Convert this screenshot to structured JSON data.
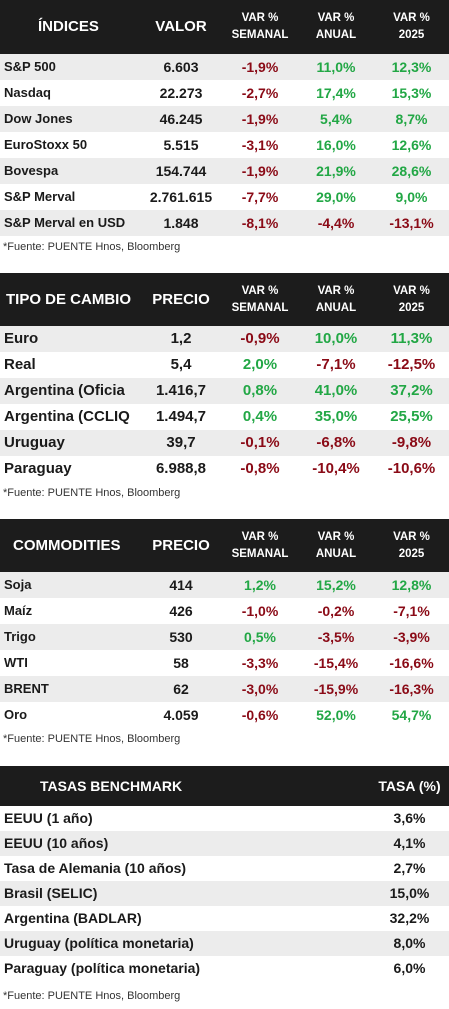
{
  "indices": {
    "headers": {
      "name": "ÍNDICES",
      "value": "VALOR",
      "week": [
        "VAR %",
        "SEMANAL"
      ],
      "year": [
        "VAR %",
        "ANUAL"
      ],
      "ytd": [
        "VAR %",
        "2025"
      ]
    },
    "rows": [
      {
        "name": "S&P 500",
        "value": "6.603",
        "week": "-1,9%",
        "year": "11,0%",
        "ytd": "12,3%"
      },
      {
        "name": "Nasdaq",
        "value": "22.273",
        "week": "-2,7%",
        "year": "17,4%",
        "ytd": "15,3%"
      },
      {
        "name": "Dow Jones",
        "value": "46.245",
        "week": "-1,9%",
        "year": "5,4%",
        "ytd": "8,7%"
      },
      {
        "name": "EuroStoxx 50",
        "value": "5.515",
        "week": "-3,1%",
        "year": "16,0%",
        "ytd": "12,6%"
      },
      {
        "name": "Bovespa",
        "value": "154.744",
        "week": "-1,9%",
        "year": "21,9%",
        "ytd": "28,6%"
      },
      {
        "name": "S&P Merval",
        "value": "2.761.615",
        "week": "-7,7%",
        "year": "29,0%",
        "ytd": "9,0%"
      },
      {
        "name": "S&P Merval en USD",
        "value": "1.848",
        "week": "-8,1%",
        "year": "-4,4%",
        "ytd": "-13,1%"
      }
    ],
    "source": "*Fuente: PUENTE Hnos, Bloomberg"
  },
  "fx": {
    "headers": {
      "name": "TIPO DE CAMBIO",
      "value": "PRECIO",
      "week": [
        "VAR %",
        "SEMANAL"
      ],
      "year": [
        "VAR %",
        "ANUAL"
      ],
      "ytd": [
        "VAR %",
        "2025"
      ]
    },
    "rows": [
      {
        "name": "Euro",
        "value": "1,2",
        "week": "-0,9%",
        "year": "10,0%",
        "ytd": "11,3%"
      },
      {
        "name": "Real",
        "value": "5,4",
        "week": "2,0%",
        "year": "-7,1%",
        "ytd": "-12,5%"
      },
      {
        "name": "Argentina (Oficia",
        "value": "1.416,7",
        "week": "0,8%",
        "year": "41,0%",
        "ytd": "37,2%"
      },
      {
        "name": "Argentina (CCLIQ",
        "value": "1.494,7",
        "week": "0,4%",
        "year": "35,0%",
        "ytd": "25,5%"
      },
      {
        "name": "Uruguay",
        "value": "39,7",
        "week": "-0,1%",
        "year": "-6,8%",
        "ytd": "-9,8%"
      },
      {
        "name": "Paraguay",
        "value": "6.988,8",
        "week": "-0,8%",
        "year": "-10,4%",
        "ytd": "-10,6%"
      }
    ],
    "source": "*Fuente: PUENTE Hnos, Bloomberg"
  },
  "commodities": {
    "headers": {
      "name": "COMMODITIES",
      "value": "PRECIO",
      "week": [
        "VAR %",
        "SEMANAL"
      ],
      "year": [
        "VAR %",
        "ANUAL"
      ],
      "ytd": [
        "VAR %",
        "2025"
      ]
    },
    "rows": [
      {
        "name": "Soja",
        "value": "414",
        "week": "1,2%",
        "year": "15,2%",
        "ytd": "12,8%"
      },
      {
        "name": "Maíz",
        "value": "426",
        "week": "-1,0%",
        "year": "-0,2%",
        "ytd": "-7,1%"
      },
      {
        "name": "Trigo",
        "value": "530",
        "week": "0,5%",
        "year": "-3,5%",
        "ytd": "-3,9%"
      },
      {
        "name": "WTI",
        "value": "58",
        "week": "-3,3%",
        "year": "-15,4%",
        "ytd": "-16,6%"
      },
      {
        "name": "BRENT",
        "value": "62",
        "week": "-3,0%",
        "year": "-15,9%",
        "ytd": "-16,3%"
      },
      {
        "name": "Oro",
        "value": "4.059",
        "week": "-0,6%",
        "year": "52,0%",
        "ytd": "54,7%"
      }
    ],
    "source": "*Fuente: PUENTE Hnos, Bloomberg"
  },
  "rates": {
    "headers": {
      "name": "TASAS BENCHMARK",
      "rate": "TASA (%)"
    },
    "rows": [
      {
        "name": "EEUU (1 año)",
        "rate": "3,6%"
      },
      {
        "name": "EEUU (10 años)",
        "rate": "4,1%"
      },
      {
        "name": "Tasa de Alemania (10 años)",
        "rate": "2,7%"
      },
      {
        "name": "Brasil (SELIC)",
        "rate": "15,0%"
      },
      {
        "name": "Argentina (BADLAR)",
        "rate": "32,2%"
      },
      {
        "name": "Uruguay (política monetaria)",
        "rate": "8,0%"
      },
      {
        "name": "Paraguay (política monetaria)",
        "rate": "6,0%"
      }
    ],
    "source": "*Fuente: PUENTE Hnos, Bloomberg"
  },
  "colors": {
    "header_bg": "#1c1c1c",
    "positive": "#22a745",
    "negative": "#8a0a16",
    "stripe": "#ececec"
  }
}
